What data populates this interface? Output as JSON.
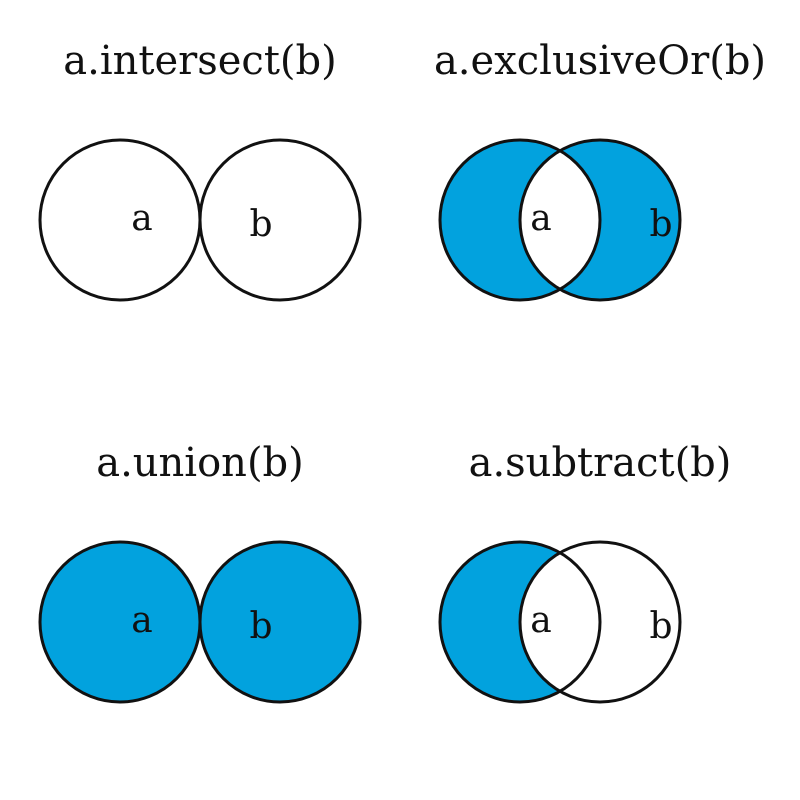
{
  "colors": {
    "fill": "#02a2de",
    "stroke": "#111111",
    "background": "#ffffff"
  },
  "panels": [
    {
      "title": "a.intersect(b)",
      "label_a": "a",
      "label_b": "b",
      "operation": "intersect"
    },
    {
      "title": "a.exclusiveOr(b)",
      "label_a": "a",
      "label_b": "b",
      "operation": "exclusiveOr"
    },
    {
      "title": "a.union(b)",
      "label_a": "a",
      "label_b": "b",
      "operation": "union"
    },
    {
      "title": "a.subtract(b)",
      "label_a": "a",
      "label_b": "b",
      "operation": "subtract"
    }
  ]
}
